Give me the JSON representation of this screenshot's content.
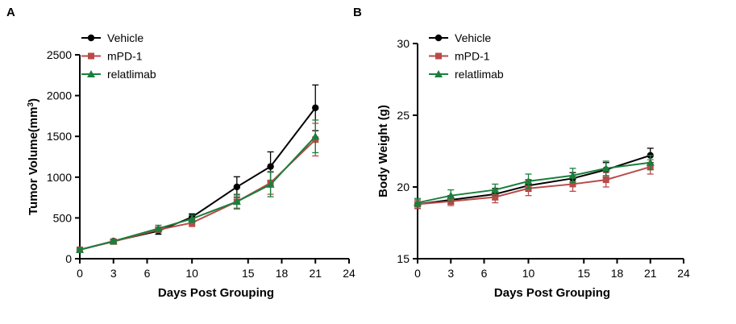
{
  "panels": [
    {
      "letter": "A",
      "chart_data": {
        "type": "line",
        "title": "",
        "xlabel": "Days Post Grouping",
        "ylabel": "Tumor Volume(mm³)",
        "ylabel_main": "Tumor Volume(mm",
        "ylabel_sup": "3",
        "ylabel_close": ")",
        "xlim": [
          0,
          24
        ],
        "ylim": [
          0,
          2500
        ],
        "x_ticks": [
          0,
          3,
          6,
          10,
          15,
          18,
          21,
          24
        ],
        "x_tick_labels": [
          "0",
          "3",
          "6",
          "10",
          "15",
          "18",
          "21",
          "24"
        ],
        "y_ticks": [
          0,
          500,
          1000,
          1500,
          2000,
          2500
        ],
        "y_tick_labels": [
          "0",
          "500",
          "1000",
          "1500",
          "2000",
          "2500"
        ],
        "grid": false,
        "legend_position": "top-left",
        "series": [
          {
            "name": "Vehicle",
            "color": "#000000",
            "marker": "circle",
            "x": [
              0,
              3,
              7,
              10,
              14,
              17,
              21
            ],
            "y": [
              110,
              215,
              340,
              510,
              880,
              1130,
              1850
            ],
            "err": [
              20,
              20,
              40,
              40,
              125,
              180,
              280
            ]
          },
          {
            "name": "mPD-1",
            "color": "#b94a48",
            "marker": "square",
            "x": [
              0,
              3,
              7,
              10,
              14,
              17,
              21
            ],
            "y": [
              110,
              210,
              355,
              440,
              700,
              930,
              1460
            ],
            "err": [
              20,
              20,
              35,
              45,
              80,
              140,
              200
            ]
          },
          {
            "name": "relatlimab",
            "color": "#1a7f3c",
            "marker": "triangle",
            "x": [
              0,
              3,
              7,
              10,
              14,
              17,
              21
            ],
            "y": [
              110,
              215,
              370,
              490,
              700,
              910,
              1500
            ],
            "err": [
              20,
              20,
              40,
              45,
              90,
              150,
              200
            ]
          }
        ]
      }
    },
    {
      "letter": "B",
      "chart_data": {
        "type": "line",
        "title": "",
        "xlabel": "Days Post Grouping",
        "ylabel": "Body Weight (g)",
        "ylabel_main": "Body Weight (g)",
        "ylabel_sup": "",
        "ylabel_close": "",
        "xlim": [
          0,
          24
        ],
        "ylim": [
          15,
          30
        ],
        "x_ticks": [
          0,
          3,
          6,
          10,
          15,
          18,
          21,
          24
        ],
        "x_tick_labels": [
          "0",
          "3",
          "6",
          "10",
          "15",
          "18",
          "21",
          "24"
        ],
        "y_ticks": [
          15,
          20,
          25,
          30
        ],
        "y_tick_labels": [
          "15",
          "20",
          "25",
          "30"
        ],
        "grid": false,
        "legend_position": "top-left",
        "series": [
          {
            "name": "Vehicle",
            "color": "#000000",
            "marker": "circle",
            "x": [
              0,
              3,
              7,
              10,
              14,
              17,
              21
            ],
            "y": [
              18.8,
              19.1,
              19.5,
              20.1,
              20.6,
              21.2,
              22.2
            ],
            "err": [
              0.3,
              0.3,
              0.4,
              0.4,
              0.4,
              0.5,
              0.5
            ]
          },
          {
            "name": "mPD-1",
            "color": "#b94a48",
            "marker": "square",
            "x": [
              0,
              3,
              7,
              10,
              14,
              17,
              21
            ],
            "y": [
              18.8,
              19.0,
              19.3,
              19.9,
              20.2,
              20.5,
              21.4
            ],
            "err": [
              0.3,
              0.3,
              0.4,
              0.5,
              0.5,
              0.5,
              0.5
            ]
          },
          {
            "name": "relatlimab",
            "color": "#1a7f3c",
            "marker": "triangle",
            "x": [
              0,
              3,
              7,
              10,
              14,
              17,
              21
            ],
            "y": [
              18.9,
              19.4,
              19.8,
              20.4,
              20.8,
              21.3,
              21.7
            ],
            "err": [
              0.3,
              0.4,
              0.4,
              0.5,
              0.5,
              0.5,
              0.5
            ]
          }
        ]
      }
    }
  ]
}
